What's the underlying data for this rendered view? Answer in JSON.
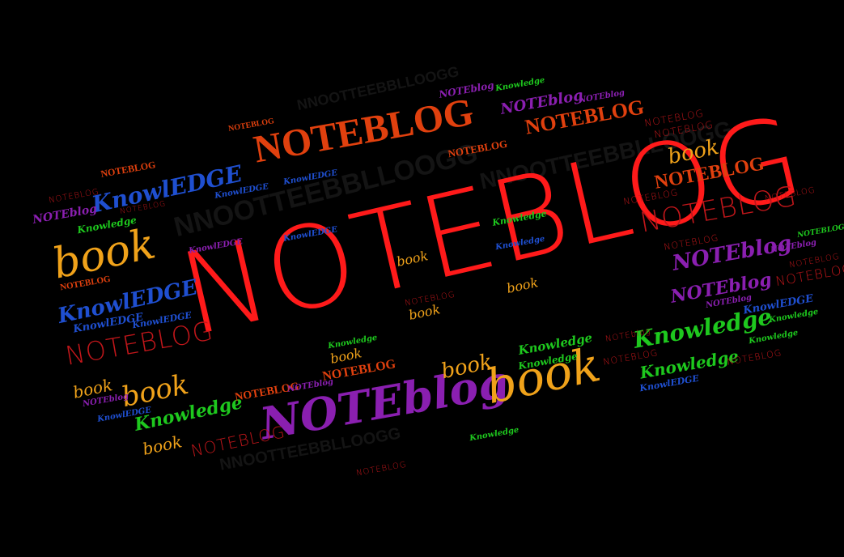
{
  "colors": {
    "background": "#000000",
    "red": "#ff1a1a",
    "orange_red": "#e0400e",
    "dark_red": "#c0161a",
    "orange": "#f0a21a",
    "purple": "#8a1fb0",
    "blue": "#1f4fd0",
    "green": "#1ec81e",
    "shadow": "#141414"
  },
  "words": [
    {
      "text": "NOTEBLOG",
      "color": "red"
    },
    {
      "text": "NOTEBLOG",
      "color": "orange_red"
    },
    {
      "text": "NOTEblog",
      "color": "purple"
    },
    {
      "text": "book",
      "color": "orange"
    },
    {
      "text": "book",
      "color": "orange"
    },
    {
      "text": "NOTEBLOG",
      "color": "dark_red"
    },
    {
      "text": "NOTEBLOG",
      "color": "dark_red"
    },
    {
      "text": "Knowledge",
      "color": "green"
    },
    {
      "text": "Knowledge",
      "color": "green"
    },
    {
      "text": "Knowledge",
      "color": "green"
    },
    {
      "text": "Knowledge",
      "color": "green"
    },
    {
      "text": "KnowlEDGE",
      "color": "blue"
    },
    {
      "text": "KnowlEDGE",
      "color": "blue"
    },
    {
      "text": "NOTEblog",
      "color": "purple"
    },
    {
      "text": "NOTEblog",
      "color": "purple"
    },
    {
      "text": "NOTEblog",
      "color": "purple"
    },
    {
      "text": "NOTEBLOG",
      "color": "orange_red"
    },
    {
      "text": "NOTEBLOG",
      "color": "orange_red"
    },
    {
      "text": "book",
      "color": "orange"
    },
    {
      "text": "book",
      "color": "orange"
    },
    {
      "text": "book",
      "color": "orange"
    },
    {
      "text": "book",
      "color": "orange"
    },
    {
      "text": "book",
      "color": "orange"
    },
    {
      "text": "book",
      "color": "orange"
    },
    {
      "text": "book",
      "color": "orange"
    },
    {
      "text": "book",
      "color": "orange"
    },
    {
      "text": "book",
      "color": "orange"
    },
    {
      "text": "NOTEBLOG",
      "color": "dark_red"
    },
    {
      "text": "NOTEBLOG",
      "color": "orange_red"
    },
    {
      "text": "NOTEBLOG",
      "color": "orange_red"
    },
    {
      "text": "NOTEBLOG",
      "color": "orange_red"
    },
    {
      "text": "NOTEBLOG",
      "color": "orange_red"
    },
    {
      "text": "NOTEBLOG",
      "color": "orange_red"
    },
    {
      "text": "NOTEBLOG",
      "color": "dark_red"
    },
    {
      "text": "NOTEBLOG",
      "color": "orange_red"
    },
    {
      "text": "NOTEBLOG",
      "color": "dark_red"
    },
    {
      "text": "NOTEBLOG",
      "color": "dark_red"
    },
    {
      "text": "NOTEBLOG",
      "color": "dark_red"
    },
    {
      "text": "NOTEBLOG",
      "color": "dark_red"
    },
    {
      "text": "NOTEBLOG",
      "color": "dark_red"
    },
    {
      "text": "NOTEBLOG",
      "color": "dark_red"
    },
    {
      "text": "NOTEBLOG",
      "color": "dark_red"
    },
    {
      "text": "NOTEBLOG",
      "color": "dark_red"
    },
    {
      "text": "NOTEBLOG",
      "color": "dark_red"
    },
    {
      "text": "NOTEBLOG",
      "color": "dark_red"
    },
    {
      "text": "NOTEBLOG",
      "color": "dark_red"
    },
    {
      "text": "NOTEblog",
      "color": "purple"
    },
    {
      "text": "NOTEblog",
      "color": "purple"
    },
    {
      "text": "NOTEblog",
      "color": "purple"
    },
    {
      "text": "NOTEblog",
      "color": "purple"
    },
    {
      "text": "NOTEblog",
      "color": "purple"
    },
    {
      "text": "NOTEblog",
      "color": "purple"
    },
    {
      "text": "NOTEblog",
      "color": "purple"
    },
    {
      "text": "NOTEblog",
      "color": "purple"
    },
    {
      "text": "KnowlEDGE",
      "color": "blue"
    },
    {
      "text": "KnowlEDGE",
      "color": "blue"
    },
    {
      "text": "KnowlEDGE",
      "color": "blue"
    },
    {
      "text": "KnowlEDGE",
      "color": "blue"
    },
    {
      "text": "KnowlEDGE",
      "color": "blue"
    },
    {
      "text": "KnowlEDGE",
      "color": "blue"
    },
    {
      "text": "KnowlEDGE",
      "color": "blue"
    },
    {
      "text": "KnowlEDGE",
      "color": "blue"
    },
    {
      "text": "KnowlEDGE",
      "color": "blue"
    },
    {
      "text": "Knowledge",
      "color": "green"
    },
    {
      "text": "Knowledge",
      "color": "green"
    },
    {
      "text": "Knowledge",
      "color": "green"
    },
    {
      "text": "Knowledge",
      "color": "green"
    },
    {
      "text": "Knowledge",
      "color": "green"
    },
    {
      "text": "Knowledge",
      "color": "green"
    },
    {
      "text": "Knowledge",
      "color": "green"
    },
    {
      "text": "Knowledge",
      "color": "green"
    },
    {
      "text": "Knowledge",
      "color": "green"
    },
    {
      "text": "NOTEBLOG",
      "color": "dark_red"
    },
    {
      "text": "NOTEBLOG",
      "color": "dark_red"
    },
    {
      "text": "NNOOTTEEBBLLOOGG",
      "color": "shadow"
    },
    {
      "text": "NNOOTTEEBBLLOOGG",
      "color": "shadow"
    },
    {
      "text": "NNOOTTEEBBLLOOGG",
      "color": "shadow"
    },
    {
      "text": "NNOOTTEEBBLLOOGG",
      "color": "shadow"
    }
  ]
}
